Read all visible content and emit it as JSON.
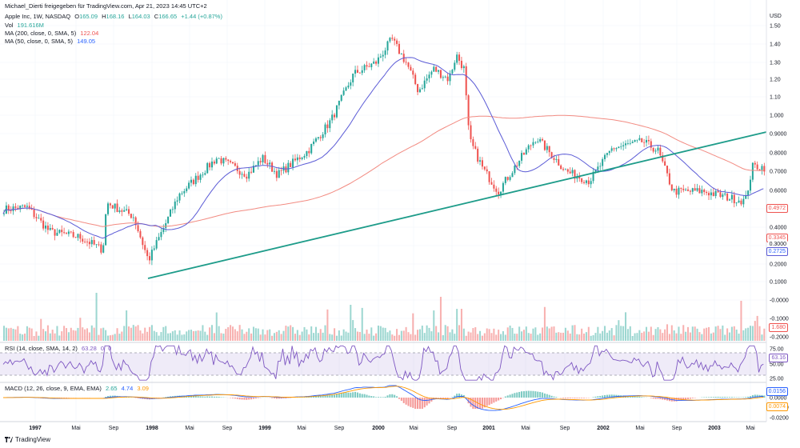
{
  "header": {
    "publisher": "Michael_Dierti freigegeben für TradingView.com, Apr 21, 2023 14:45 UTC+2",
    "symbol": "Apple Inc, 1W, NASDAQ",
    "o_label": "O",
    "o_value": "165.09",
    "h_label": "H",
    "h_value": "168.16",
    "l_label": "L",
    "l_value": "164.03",
    "c_label": "C",
    "c_value": "166.65",
    "change": "+1.44 (+0.87%)"
  },
  "indicators": {
    "vol_label": "Vol",
    "vol_value": "191.616M",
    "ma200_label": "MA (200, close, 0, SMA, 5)",
    "ma200_value": "122.04",
    "ma50_label": "MA (50, close, 0, SMA, 5)",
    "ma50_value": "149.05",
    "rsi_label": "RSI (14, close, SMA, 14, 2)",
    "rsi_v1": "63.28",
    "rsi_v2": "0",
    "rsi_v3": "0",
    "macd_label": "MACD (12, 26, close, 9, EMA, EMA)",
    "macd_v1": "2.65",
    "macd_v2": "4.74",
    "macd_v3": "3.09"
  },
  "currency": "USD",
  "price_badges": {
    "ma200": "0.4972",
    "last": "0.3345",
    "close": "0.3000",
    "ma50": "0.2725",
    "volume": "1.680"
  },
  "rsi_badge": "63.16",
  "macd_badges": {
    "macd": "0.0156",
    "signal": "0.0074"
  },
  "colors": {
    "up": "#26a69a",
    "down": "#ef5350",
    "ma200": "#f28b82",
    "ma50": "#5b5bd6",
    "trend": "#1e9c8a",
    "rsi": "#7e57c2",
    "macd": "#2962ff",
    "signal": "#ff9800"
  },
  "brand": "TradingView",
  "chart_data": {
    "type": "candlestick",
    "title": "Apple Inc, 1W, NASDAQ",
    "ylabel": "USD",
    "yscale": "log",
    "y_ticks": [
      "1.50",
      "1.40",
      "1.30",
      "1.20",
      "1.10",
      "1.000",
      "0.9000",
      "0.8000",
      "0.7000",
      "0.6000",
      "0.5000",
      "0.4000",
      "0.3000",
      "0.2000",
      "0.1000",
      "-0.0000",
      "-0.1000",
      "-0.2000"
    ],
    "x_ticks": [
      "1997",
      "Mai",
      "Sep",
      "1998",
      "Mai",
      "Sep",
      "1999",
      "Mai",
      "Sep",
      "2000",
      "Mai",
      "Sep",
      "2001",
      "Mai",
      "Sep",
      "2002",
      "Mai",
      "Sep",
      "2003",
      "Mai"
    ],
    "rsi_ticks": [
      "75.00",
      "50.00",
      "25.00"
    ],
    "rsi_bands": [
      70,
      30
    ],
    "macd_ticks": [
      "0.0156",
      "0.0000",
      "-0.0100",
      "-0.0200"
    ],
    "price_keypoints": [
      {
        "x": 0.0,
        "y": 0.215
      },
      {
        "x": 0.03,
        "y": 0.22
      },
      {
        "x": 0.06,
        "y": 0.17
      },
      {
        "x": 0.1,
        "y": 0.16
      },
      {
        "x": 0.13,
        "y": 0.14
      },
      {
        "x": 0.135,
        "y": 0.23
      },
      {
        "x": 0.17,
        "y": 0.2
      },
      {
        "x": 0.19,
        "y": 0.125
      },
      {
        "x": 0.23,
        "y": 0.25
      },
      {
        "x": 0.28,
        "y": 0.37
      },
      {
        "x": 0.32,
        "y": 0.31
      },
      {
        "x": 0.34,
        "y": 0.37
      },
      {
        "x": 0.36,
        "y": 0.31
      },
      {
        "x": 0.4,
        "y": 0.4
      },
      {
        "x": 0.43,
        "y": 0.55
      },
      {
        "x": 0.46,
        "y": 0.9
      },
      {
        "x": 0.49,
        "y": 1.02
      },
      {
        "x": 0.51,
        "y": 1.3
      },
      {
        "x": 0.53,
        "y": 1.0
      },
      {
        "x": 0.545,
        "y": 0.75
      },
      {
        "x": 0.565,
        "y": 0.95
      },
      {
        "x": 0.585,
        "y": 0.85
      },
      {
        "x": 0.595,
        "y": 1.1
      },
      {
        "x": 0.605,
        "y": 0.95
      },
      {
        "x": 0.612,
        "y": 0.45
      },
      {
        "x": 0.63,
        "y": 0.33
      },
      {
        "x": 0.65,
        "y": 0.26
      },
      {
        "x": 0.68,
        "y": 0.37
      },
      {
        "x": 0.7,
        "y": 0.46
      },
      {
        "x": 0.74,
        "y": 0.32
      },
      {
        "x": 0.77,
        "y": 0.29
      },
      {
        "x": 0.8,
        "y": 0.41
      },
      {
        "x": 0.84,
        "y": 0.44
      },
      {
        "x": 0.86,
        "y": 0.4
      },
      {
        "x": 0.88,
        "y": 0.26
      },
      {
        "x": 0.92,
        "y": 0.26
      },
      {
        "x": 0.96,
        "y": 0.24
      },
      {
        "x": 0.975,
        "y": 0.235
      },
      {
        "x": 0.985,
        "y": 0.34
      },
      {
        "x": 1.0,
        "y": 0.335
      }
    ]
  }
}
